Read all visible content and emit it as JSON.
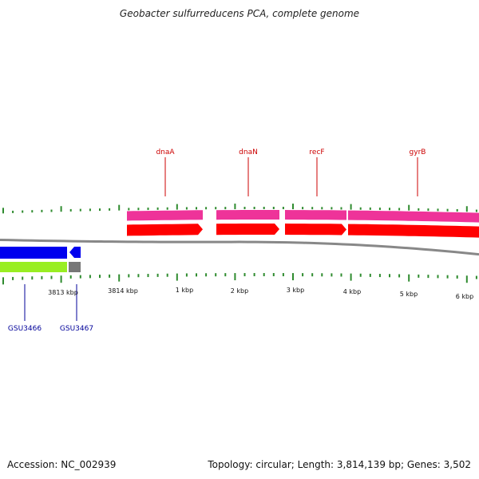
{
  "header": {
    "title": "Geobacter sulfurreducens PCA, complete genome"
  },
  "genes_top": [
    {
      "label": "dnaA",
      "color": "#cc0000"
    },
    {
      "label": "dnaN",
      "color": "#cc0000"
    },
    {
      "label": "recF",
      "color": "#cc0000"
    },
    {
      "label": "gyrB",
      "color": "#cc0000"
    }
  ],
  "genes_bottom": [
    {
      "label": "GSU3466",
      "color": "#000099"
    },
    {
      "label": "GSU3467",
      "color": "#000099"
    }
  ],
  "position_labels": [
    "3813 kbp",
    "3814 kbp",
    "1 kbp",
    "2 kbp",
    "3 kbp",
    "4 kbp",
    "5 kbp",
    "6 kbp"
  ],
  "colors": {
    "cds_forward": "#ff0000",
    "feature_forward": "#ee3399",
    "cds_reverse": "#0000ee",
    "feature_reverse": "#99ee22",
    "feature_other": "#777777",
    "ticks": "#2e8b2e",
    "backbone": "#888888"
  },
  "footer": {
    "accession": "Accession: NC_002939",
    "summary": "Topology: circular; Length: 3,814,139 bp; Genes: 3,502"
  }
}
